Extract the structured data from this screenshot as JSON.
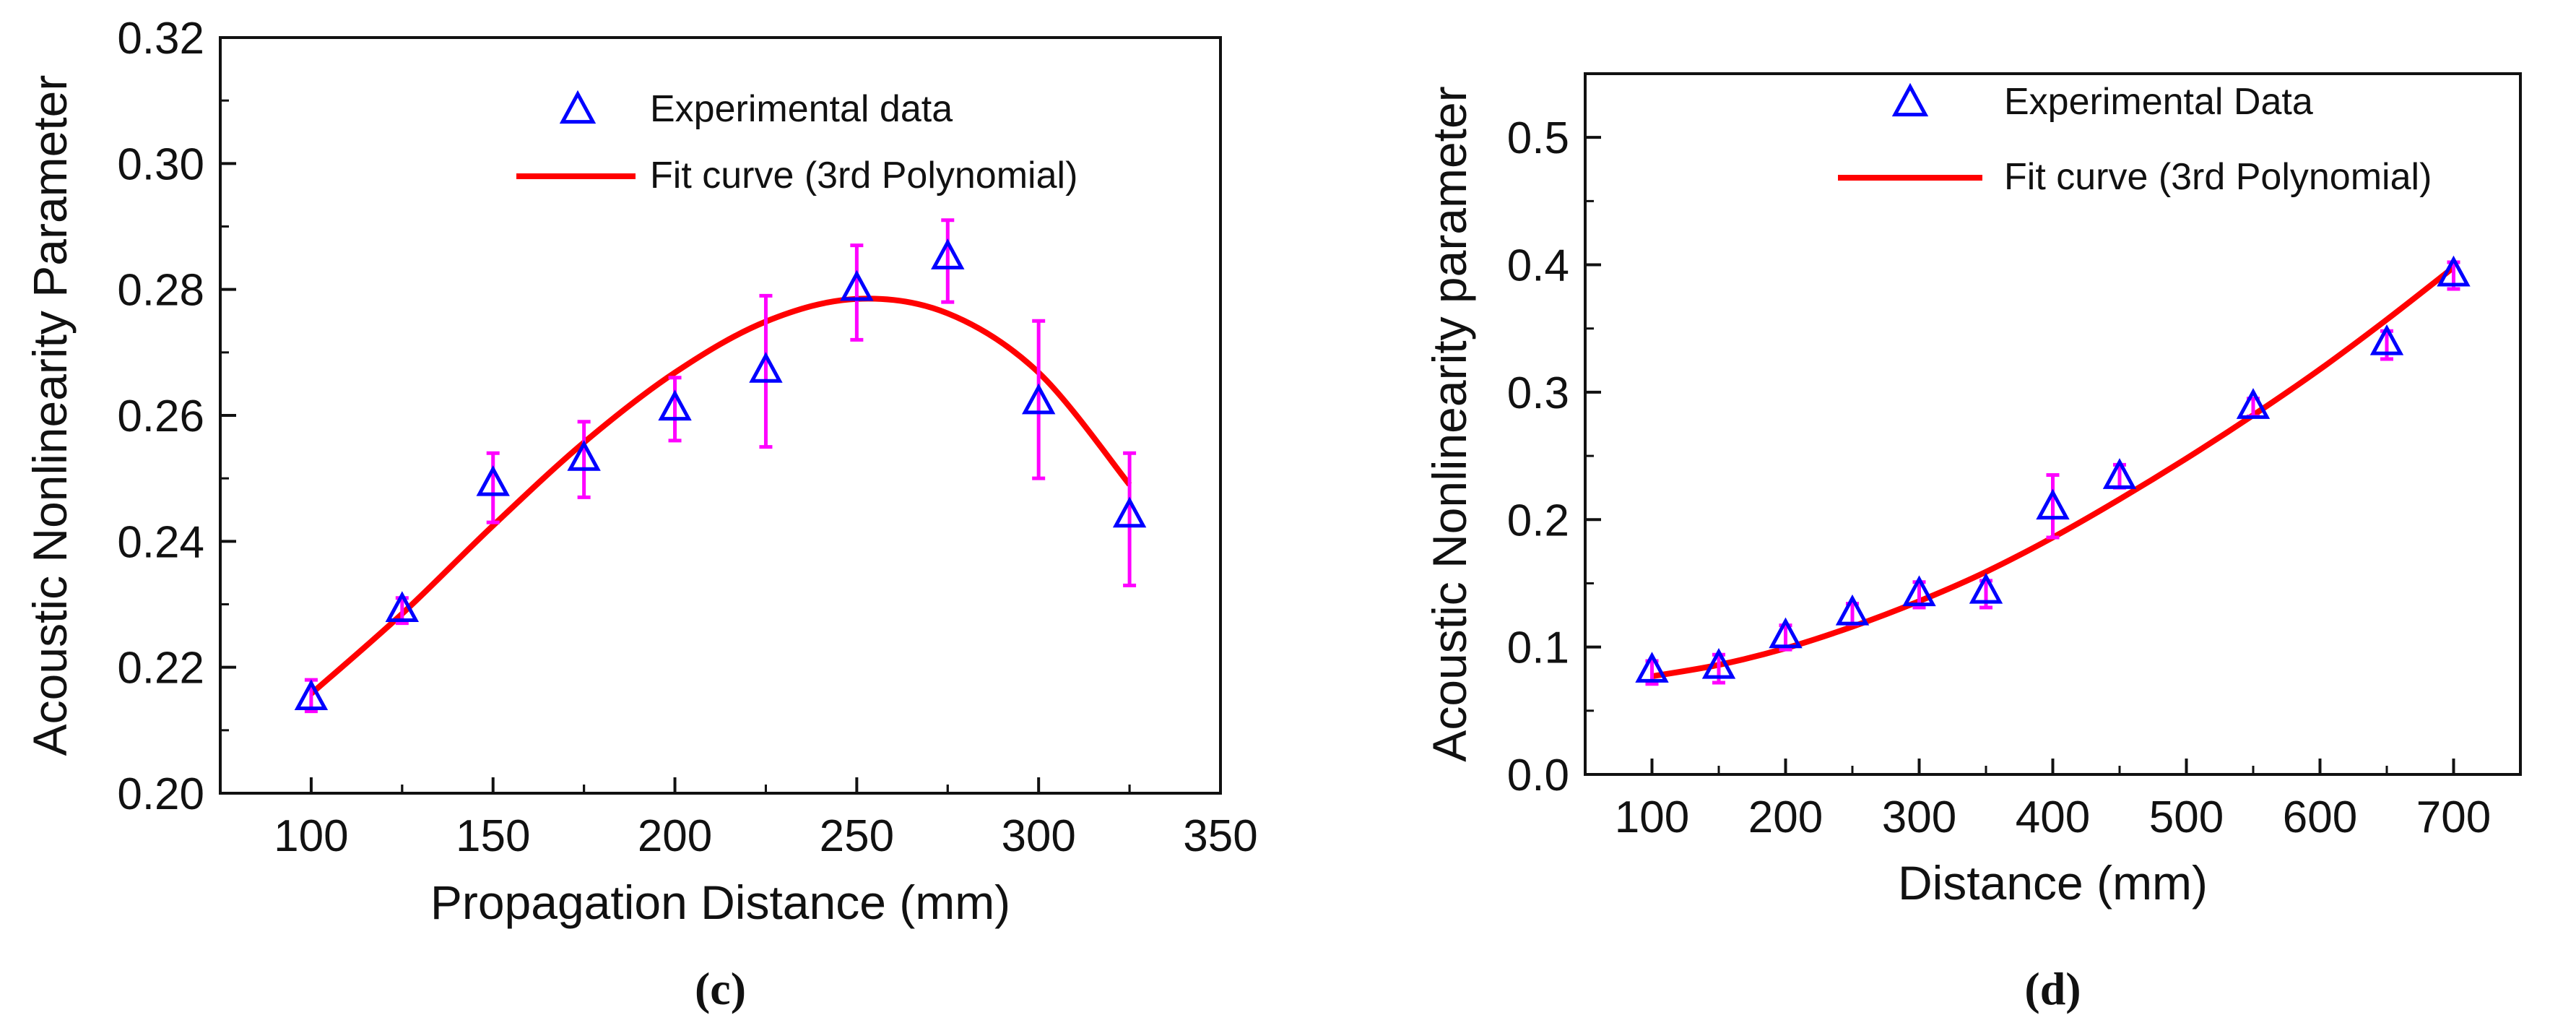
{
  "chart_data": [
    {
      "type": "scatter",
      "panel_label": "(c)",
      "xlabel": "Propagation Distance (mm)",
      "ylabel": "Acoustic Nonlinearity Parameter",
      "xlim": [
        75,
        350
      ],
      "ylim": [
        0.2,
        0.32
      ],
      "xticks": [
        100,
        150,
        200,
        250,
        300,
        350
      ],
      "yticks": [
        0.2,
        0.22,
        0.24,
        0.26,
        0.28,
        0.3,
        0.32
      ],
      "xtick_labels": [
        "100",
        "150",
        "200",
        "250",
        "300",
        "350"
      ],
      "ytick_labels": [
        "0.20",
        "0.22",
        "0.24",
        "0.26",
        "0.28",
        "0.30",
        "0.32"
      ],
      "series": [
        {
          "name": "Experimental data",
          "kind": "scatter",
          "marker": "open-triangle",
          "color": "#0000ff",
          "x": [
            100,
            125,
            150,
            175,
            200,
            225,
            250,
            275,
            300,
            325
          ],
          "y": [
            0.215,
            0.229,
            0.249,
            0.253,
            0.261,
            0.267,
            0.28,
            0.285,
            0.262,
            0.244
          ],
          "error_low": [
            0.213,
            0.227,
            0.243,
            0.247,
            0.256,
            0.255,
            0.272,
            0.278,
            0.25,
            0.233
          ],
          "error_high": [
            0.218,
            0.231,
            0.254,
            0.259,
            0.266,
            0.279,
            0.287,
            0.291,
            0.275,
            0.254
          ],
          "error_color": "#ff00ff"
        },
        {
          "name": "Fit curve (3rd Polynomial)",
          "kind": "line",
          "color": "#ff0000",
          "x": [
            100,
            125,
            150,
            175,
            200,
            225,
            250,
            275,
            300,
            325
          ],
          "y": [
            0.2158,
            0.2285,
            0.2425,
            0.2557,
            0.2668,
            0.2749,
            0.2785,
            0.2762,
            0.2668,
            0.249
          ]
        }
      ],
      "legend": [
        {
          "label": "Experimental data",
          "symbol": "open-triangle",
          "color": "#0000ff"
        },
        {
          "label": "Fit curve (3rd Polynomial)",
          "symbol": "line",
          "color": "#ff0000"
        }
      ]
    },
    {
      "type": "scatter",
      "panel_label": "(d)",
      "xlabel": "Distance (mm)",
      "ylabel": "Acoustic Nonlinearity parameter",
      "xlim": [
        50,
        750
      ],
      "ylim": [
        0.0,
        0.55
      ],
      "xticks": [
        100,
        200,
        300,
        400,
        500,
        600,
        700
      ],
      "yticks": [
        0.0,
        0.1,
        0.2,
        0.3,
        0.4,
        0.5
      ],
      "xtick_labels": [
        "100",
        "200",
        "300",
        "400",
        "500",
        "600",
        "700"
      ],
      "ytick_labels": [
        "0.0",
        "0.1",
        "0.2",
        "0.3",
        "0.4",
        "0.5"
      ],
      "series": [
        {
          "name": "Experimental Data",
          "kind": "scatter",
          "marker": "open-triangle",
          "color": "#0000ff",
          "x": [
            100,
            150,
            200,
            250,
            300,
            350,
            400,
            450,
            550,
            650,
            700
          ],
          "y": [
            0.081,
            0.084,
            0.108,
            0.126,
            0.141,
            0.143,
            0.209,
            0.233,
            0.288,
            0.338,
            0.392
          ],
          "error_low": [
            0.071,
            0.072,
            0.098,
            0.118,
            0.131,
            0.131,
            0.186,
            0.225,
            0.281,
            0.326,
            0.381
          ],
          "error_high": [
            0.089,
            0.094,
            0.117,
            0.134,
            0.151,
            0.152,
            0.235,
            0.243,
            0.295,
            0.348,
            0.402
          ],
          "error_color": "#ff00ff"
        },
        {
          "name": "Fit curve (3rd Polynomial)",
          "kind": "line",
          "color": "#ff0000",
          "x": [
            100,
            150,
            200,
            250,
            300,
            350,
            400,
            450,
            500,
            550,
            600,
            650,
            700
          ],
          "y": [
            0.077,
            0.086,
            0.099,
            0.116,
            0.136,
            0.159,
            0.186,
            0.216,
            0.248,
            0.282,
            0.318,
            0.357,
            0.398
          ]
        }
      ],
      "legend": [
        {
          "label": "Experimental Data",
          "symbol": "open-triangle",
          "color": "#0000ff"
        },
        {
          "label": "Fit curve (3rd Polynomial)",
          "symbol": "line",
          "color": "#ff0000"
        }
      ]
    }
  ]
}
